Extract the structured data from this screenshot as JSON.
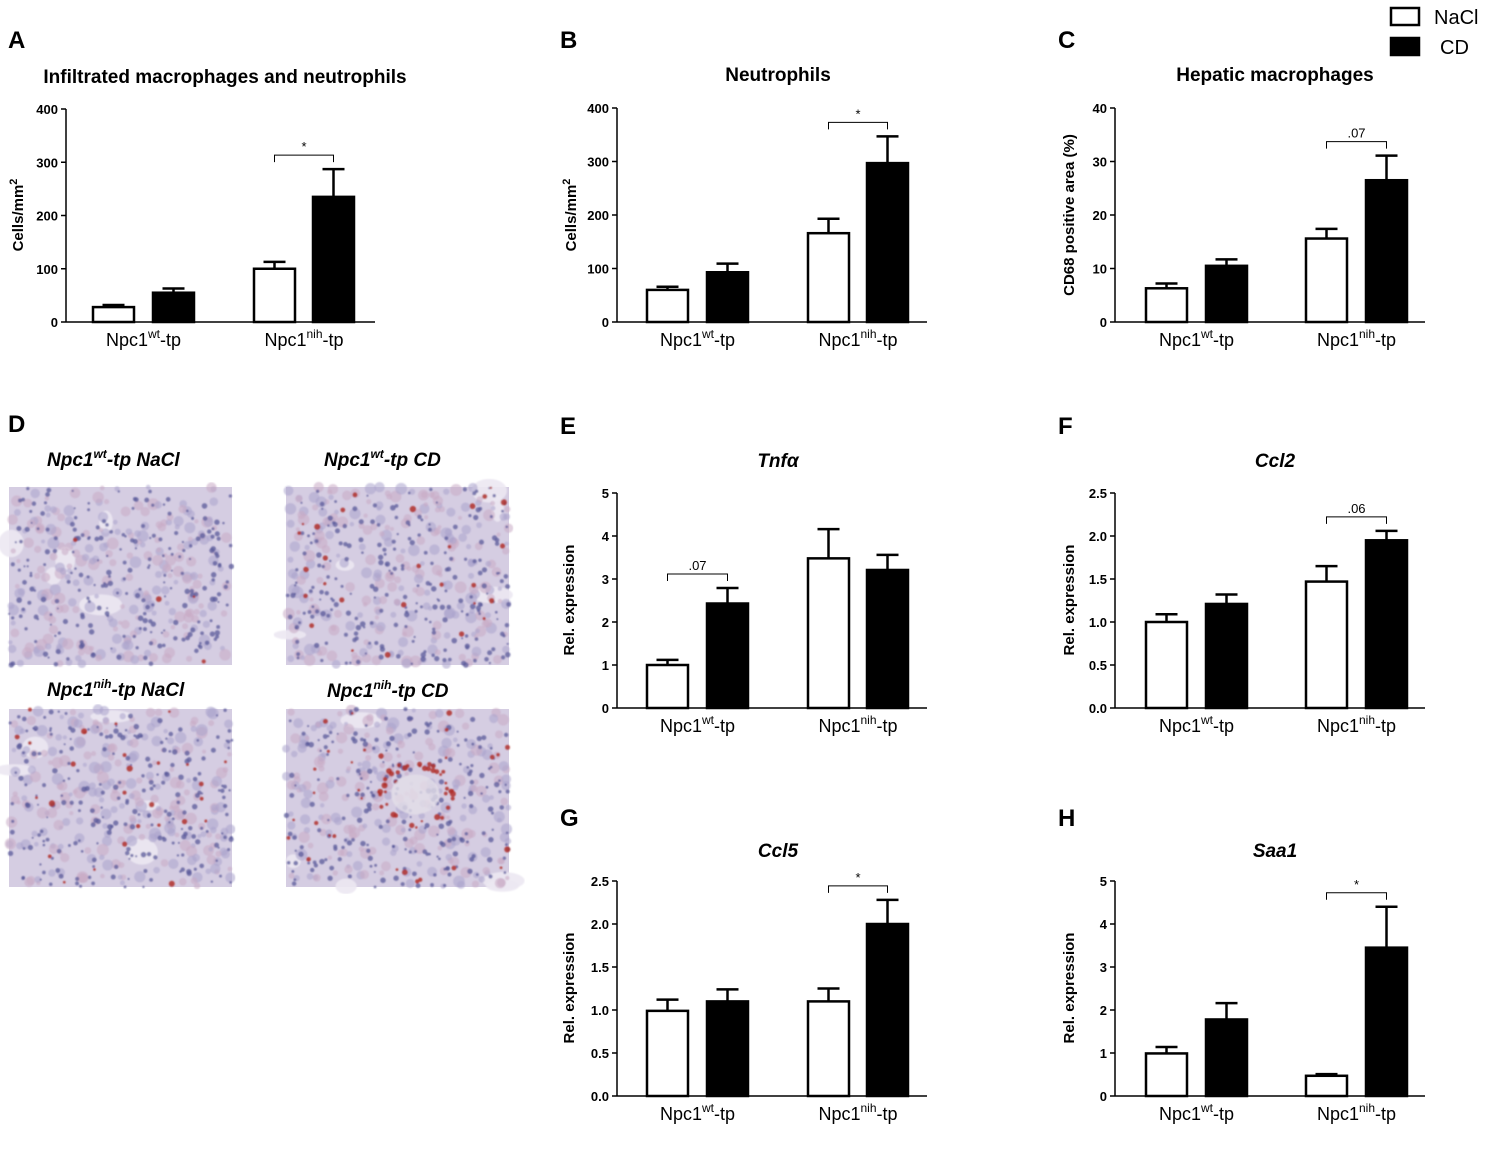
{
  "legend": {
    "entries": [
      {
        "label": "NaCl",
        "fill": "#ffffff"
      },
      {
        "label": "CD",
        "fill": "#000000"
      }
    ]
  },
  "groups": [
    {
      "main": "Npc1",
      "sup": "wt",
      "suffix": "-tp"
    },
    {
      "main": "Npc1",
      "sup": "nih",
      "suffix": "-tp"
    }
  ],
  "chart_data": [
    {
      "id": "A",
      "type": "bar",
      "title": "Infiltrated macrophages and neutrophils",
      "ylabel_main": "Cells/mm",
      "ylabel_sup": "2",
      "ylim": [
        0,
        400
      ],
      "yticks": [
        "0",
        "100",
        "200",
        "300",
        "400"
      ],
      "series": [
        {
          "name": "NaCl",
          "values": [
            28,
            100
          ],
          "errors": [
            4,
            13
          ]
        },
        {
          "name": "CD",
          "values": [
            55,
            235
          ],
          "errors": [
            8,
            52
          ]
        }
      ],
      "significance": [
        {
          "group": 1,
          "label": "*"
        }
      ]
    },
    {
      "id": "B",
      "type": "bar",
      "title": "Neutrophils",
      "ylabel_main": "Cells/mm",
      "ylabel_sup": "2",
      "ylim": [
        0,
        400
      ],
      "yticks": [
        "0",
        "100",
        "200",
        "300",
        "400"
      ],
      "series": [
        {
          "name": "NaCl",
          "values": [
            60,
            166
          ],
          "errors": [
            6,
            27
          ]
        },
        {
          "name": "CD",
          "values": [
            93,
            297
          ],
          "errors": [
            16,
            50
          ]
        }
      ],
      "significance": [
        {
          "group": 1,
          "label": "*"
        }
      ]
    },
    {
      "id": "C",
      "type": "bar",
      "title": "Hepatic macrophages",
      "ylabel_main": "CD68 positive area (%)",
      "ylabel_sup": "",
      "ylim": [
        0,
        40
      ],
      "yticks": [
        "0",
        "10",
        "20",
        "30",
        "40"
      ],
      "series": [
        {
          "name": "NaCl",
          "values": [
            6.3,
            15.6
          ],
          "errors": [
            0.9,
            1.8
          ]
        },
        {
          "name": "CD",
          "values": [
            10.5,
            26.5
          ],
          "errors": [
            1.2,
            4.6
          ]
        }
      ],
      "significance": [
        {
          "group": 1,
          "label": ".07"
        }
      ]
    },
    {
      "id": "E",
      "type": "bar",
      "title": "Tnfα",
      "ylabel_main": "Rel. expression",
      "ylabel_sup": "",
      "ylim": [
        0,
        5
      ],
      "yticks": [
        "0",
        "1",
        "2",
        "3",
        "4",
        "5"
      ],
      "series": [
        {
          "name": "NaCl",
          "values": [
            1.0,
            3.48
          ],
          "errors": [
            0.12,
            0.68
          ]
        },
        {
          "name": "CD",
          "values": [
            2.43,
            3.21
          ],
          "errors": [
            0.36,
            0.35
          ]
        }
      ],
      "significance": [
        {
          "group": 0,
          "label": ".07"
        }
      ]
    },
    {
      "id": "F",
      "type": "bar",
      "title": "Ccl2",
      "ylabel_main": "Rel. expression",
      "ylabel_sup": "",
      "ylim": [
        0,
        2.5
      ],
      "yticks": [
        "0.0",
        "0.5",
        "1.0",
        "1.5",
        "2.0",
        "2.5"
      ],
      "series": [
        {
          "name": "NaCl",
          "values": [
            1.0,
            1.47
          ],
          "errors": [
            0.09,
            0.18
          ]
        },
        {
          "name": "CD",
          "values": [
            1.21,
            1.95
          ],
          "errors": [
            0.11,
            0.11
          ]
        }
      ],
      "significance": [
        {
          "group": 1,
          "label": ".06"
        }
      ]
    },
    {
      "id": "G",
      "type": "bar",
      "title": "Ccl5",
      "ylabel_main": "Rel. expression",
      "ylabel_sup": "",
      "ylim": [
        0,
        2.5
      ],
      "yticks": [
        "0.0",
        "0.5",
        "1.0",
        "1.5",
        "2.0",
        "2.5"
      ],
      "series": [
        {
          "name": "NaCl",
          "values": [
            0.99,
            1.1
          ],
          "errors": [
            0.13,
            0.15
          ]
        },
        {
          "name": "CD",
          "values": [
            1.1,
            2.0
          ],
          "errors": [
            0.14,
            0.28
          ]
        }
      ],
      "significance": [
        {
          "group": 1,
          "label": "*"
        }
      ]
    },
    {
      "id": "H",
      "type": "bar",
      "title": "Saa1",
      "ylabel_main": "Rel. expression",
      "ylabel_sup": "",
      "ylim": [
        0,
        5
      ],
      "yticks": [
        "0",
        "1",
        "2",
        "3",
        "4",
        "5"
      ],
      "series": [
        {
          "name": "NaCl",
          "values": [
            0.99,
            0.47
          ],
          "errors": [
            0.15,
            0.04
          ]
        },
        {
          "name": "CD",
          "values": [
            1.78,
            3.45
          ],
          "errors": [
            0.38,
            0.95
          ]
        }
      ],
      "significance": [
        {
          "group": 1,
          "label": "*"
        }
      ]
    }
  ],
  "histology": {
    "letter": "D",
    "images": [
      {
        "main": "Npc1",
        "sup": "wt",
        "suffix": "-tp NaCl",
        "stain": "low"
      },
      {
        "main": "Npc1",
        "sup": "wt",
        "suffix": "-tp CD",
        "stain": "medium"
      },
      {
        "main": "Npc1",
        "sup": "nih",
        "suffix": "-tp NaCl",
        "stain": "medium"
      },
      {
        "main": "Npc1",
        "sup": "nih",
        "suffix": "-tp CD",
        "stain": "high"
      }
    ]
  },
  "colors": {
    "nacl_fill": "#ffffff",
    "cd_fill": "#000000",
    "tissue_base": "#d5cde2",
    "hematoxylin": "#5a5a9a",
    "cd68_stain": "#b0302a"
  }
}
